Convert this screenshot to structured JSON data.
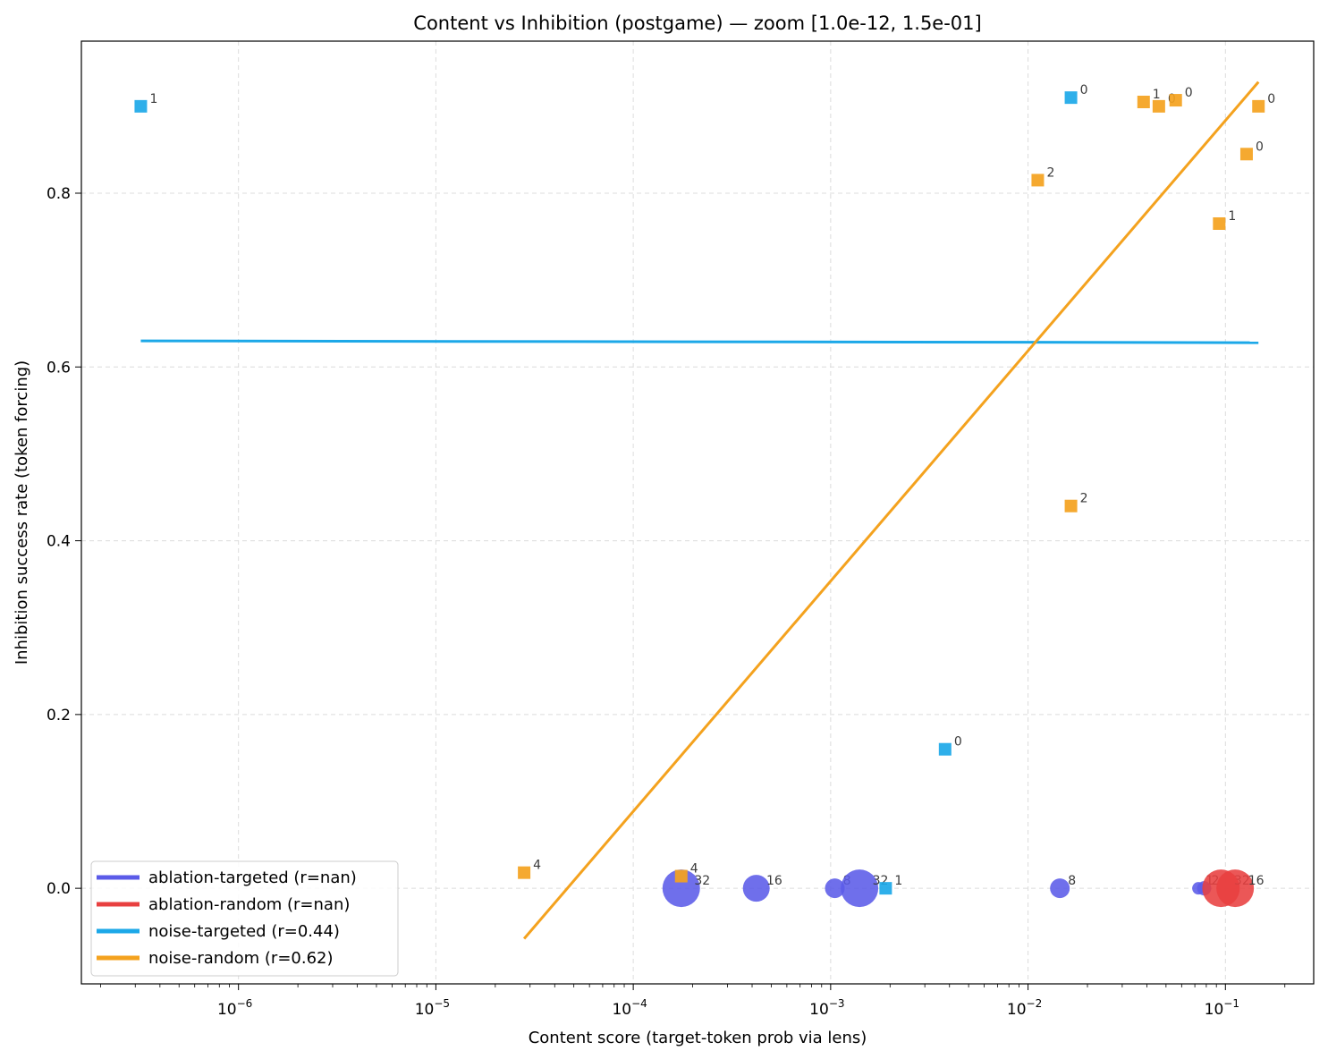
{
  "chart_data": {
    "type": "scatter",
    "title": "Content vs Inhibition (postgame) — zoom [1.0e-12, 1.5e-01]",
    "xlabel": "Content score (target-token prob via lens)",
    "ylabel": "Inhibition success rate (token forcing)",
    "xscale": "log",
    "xlim": [
      1.6e-07,
      0.28
    ],
    "ylim": [
      -0.11,
      0.975
    ],
    "grid": true,
    "legend_position": "lower-left",
    "x_ticks": [
      {
        "value": 1e-06,
        "mant": "10",
        "exp": "−6"
      },
      {
        "value": 1e-05,
        "mant": "10",
        "exp": "−5"
      },
      {
        "value": 0.0001,
        "mant": "10",
        "exp": "−4"
      },
      {
        "value": 0.001,
        "mant": "10",
        "exp": "−3"
      },
      {
        "value": 0.01,
        "mant": "10",
        "exp": "−2"
      },
      {
        "value": 0.1,
        "mant": "10",
        "exp": "−1"
      }
    ],
    "y_ticks": [
      {
        "value": 0.0,
        "label": "0.0"
      },
      {
        "value": 0.2,
        "label": "0.2"
      },
      {
        "value": 0.4,
        "label": "0.4"
      },
      {
        "value": 0.6,
        "label": "0.6"
      },
      {
        "value": 0.8,
        "label": "0.8"
      }
    ],
    "series": [
      {
        "name": "ablation-targeted (r=nan)",
        "color": "#5b5be8",
        "marker": "circle",
        "points": [
          {
            "x": 0.000175,
            "y": 0.0,
            "label": "32",
            "r": 21
          },
          {
            "x": 0.00042,
            "y": 0.0,
            "label": "16",
            "r": 15
          },
          {
            "x": 0.00105,
            "y": 0.0,
            "label": "8",
            "r": 11
          },
          {
            "x": 0.0014,
            "y": 0.0,
            "label": "32",
            "r": 21
          },
          {
            "x": 0.0145,
            "y": 0.0,
            "label": "8",
            "r": 11
          },
          {
            "x": 0.073,
            "y": 0.0,
            "label": "1",
            "r": 7
          },
          {
            "x": 0.078,
            "y": 0.0,
            "label": "2",
            "r": 8
          }
        ]
      },
      {
        "name": "ablation-random (r=nan)",
        "color": "#e84040",
        "marker": "circle",
        "points": [
          {
            "x": 0.095,
            "y": 0.0,
            "label": "32",
            "r": 21
          },
          {
            "x": 0.112,
            "y": 0.0,
            "label": "16",
            "r": 21
          }
        ]
      },
      {
        "name": "noise-targeted (r=0.44)",
        "color": "#1ca8e8",
        "marker": "square",
        "points": [
          {
            "x": 3.2e-07,
            "y": 0.9,
            "label": "1"
          },
          {
            "x": 0.0165,
            "y": 0.91,
            "label": "0"
          },
          {
            "x": 0.0038,
            "y": 0.16,
            "label": "0"
          },
          {
            "x": 0.0019,
            "y": 0.0,
            "label": "1"
          }
        ],
        "fit": {
          "x": [
            3.2e-07,
            0.147
          ],
          "y": [
            0.63,
            0.628
          ]
        }
      },
      {
        "name": "noise-random (r=0.62)",
        "color": "#f4a21e",
        "marker": "square",
        "points": [
          {
            "x": 0.0385,
            "y": 0.905,
            "label": "1"
          },
          {
            "x": 0.046,
            "y": 0.9,
            "label": "0"
          },
          {
            "x": 0.056,
            "y": 0.907,
            "label": "0"
          },
          {
            "x": 0.147,
            "y": 0.9,
            "label": "0"
          },
          {
            "x": 0.128,
            "y": 0.845,
            "label": "0"
          },
          {
            "x": 0.0112,
            "y": 0.815,
            "label": "2"
          },
          {
            "x": 0.093,
            "y": 0.765,
            "label": "1"
          },
          {
            "x": 0.0165,
            "y": 0.44,
            "label": "2"
          },
          {
            "x": 2.8e-05,
            "y": 0.018,
            "label": "4"
          },
          {
            "x": 0.000175,
            "y": 0.014,
            "label": "4"
          }
        ],
        "fit": {
          "x": [
            2.8e-05,
            0.147
          ],
          "y": [
            -0.058,
            0.928
          ]
        }
      }
    ]
  }
}
